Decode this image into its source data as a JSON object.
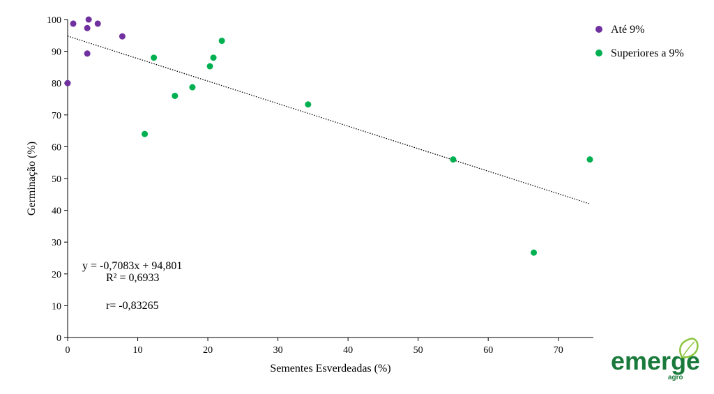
{
  "chart_data": {
    "type": "scatter",
    "title": "",
    "xlabel": "Sementes Esverdeadas (%)",
    "ylabel": "Germinação (%)",
    "xlim": [
      0,
      75
    ],
    "ylim": [
      0,
      100
    ],
    "xticks": [
      0,
      10,
      20,
      30,
      40,
      50,
      60,
      70
    ],
    "yticks": [
      0,
      10,
      20,
      30,
      40,
      50,
      60,
      70,
      80,
      90,
      100
    ],
    "grid": false,
    "legend_position": "top-right",
    "series": [
      {
        "name": "Até 9%",
        "color": "#7030a0",
        "points": [
          {
            "x": 0.0,
            "y": 80
          },
          {
            "x": 0.8,
            "y": 98.7
          },
          {
            "x": 2.8,
            "y": 97.3
          },
          {
            "x": 3.0,
            "y": 100
          },
          {
            "x": 2.8,
            "y": 89.3
          },
          {
            "x": 4.3,
            "y": 98.7
          },
          {
            "x": 7.8,
            "y": 94.7
          }
        ]
      },
      {
        "name": "Superiores a 9%",
        "color": "#00b050",
        "points": [
          {
            "x": 11.0,
            "y": 64
          },
          {
            "x": 12.3,
            "y": 88
          },
          {
            "x": 15.3,
            "y": 76
          },
          {
            "x": 17.8,
            "y": 78.7
          },
          {
            "x": 20.3,
            "y": 85.3
          },
          {
            "x": 20.8,
            "y": 88
          },
          {
            "x": 22.0,
            "y": 93.3
          },
          {
            "x": 34.3,
            "y": 73.3
          },
          {
            "x": 55.0,
            "y": 56
          },
          {
            "x": 66.5,
            "y": 26.7
          },
          {
            "x": 74.5,
            "y": 56
          }
        ]
      }
    ],
    "trendline": {
      "type": "linear",
      "slope": -0.7083,
      "intercept": 94.801,
      "x_range": [
        0,
        74.5
      ],
      "style": "dotted",
      "color": "#000000"
    },
    "annotations": {
      "equation": "y = -0,7083x + 94,801",
      "r_squared": "R² = 0,6933",
      "r": "r= -0,83265"
    }
  },
  "logo": {
    "text": "emerge",
    "subtext": "agro",
    "color": "#1a7a3c",
    "leaf_color": "#8cc63f"
  }
}
